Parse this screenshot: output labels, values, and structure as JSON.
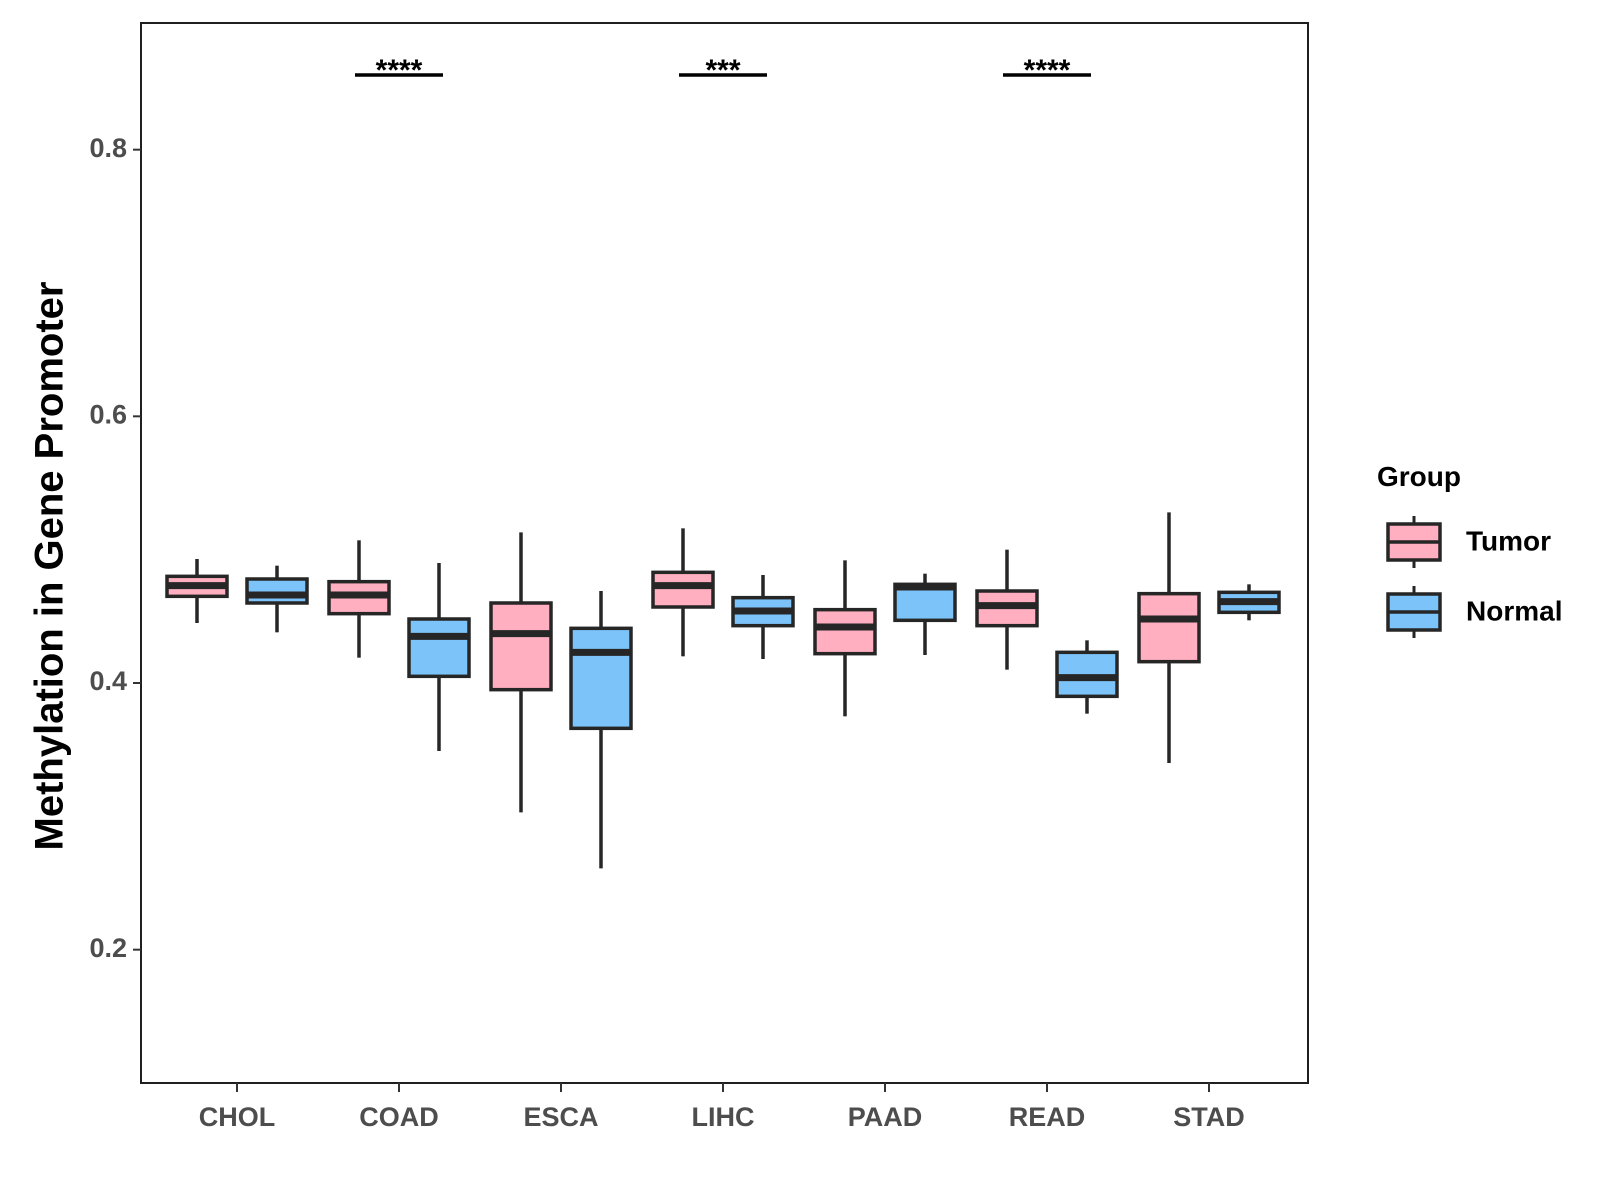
{
  "chart_data": {
    "type": "boxplot",
    "title": "",
    "xlabel": "",
    "ylabel": "Methylation in Gene Promoter",
    "ylim": [
      0.1,
      0.895
    ],
    "yticks": [
      0.2,
      0.4,
      0.6,
      0.8
    ],
    "ytick_labels": [
      "0.2",
      "0.4",
      "0.6",
      "0.8"
    ],
    "categories": [
      "CHOL",
      "COAD",
      "ESCA",
      "LIHC",
      "PAAD",
      "READ",
      "STAD"
    ],
    "legend": {
      "title": "Group",
      "position": "right",
      "entries": [
        {
          "name": "Tumor",
          "color": "#ffafc0"
        },
        {
          "name": "Normal",
          "color": "#7cc3f9"
        }
      ]
    },
    "series": [
      {
        "name": "Tumor",
        "color": "#ffafc0",
        "boxes": [
          {
            "category": "CHOL",
            "min": 0.445,
            "q1": 0.465,
            "median": 0.473,
            "q3": 0.48,
            "max": 0.493
          },
          {
            "category": "COAD",
            "min": 0.419,
            "q1": 0.452,
            "median": 0.466,
            "q3": 0.476,
            "max": 0.507
          },
          {
            "category": "ESCA",
            "min": 0.303,
            "q1": 0.395,
            "median": 0.437,
            "q3": 0.46,
            "max": 0.513
          },
          {
            "category": "LIHC",
            "min": 0.42,
            "q1": 0.457,
            "median": 0.473,
            "q3": 0.483,
            "max": 0.516
          },
          {
            "category": "PAAD",
            "min": 0.375,
            "q1": 0.422,
            "median": 0.442,
            "q3": 0.455,
            "max": 0.492
          },
          {
            "category": "READ",
            "min": 0.41,
            "q1": 0.443,
            "median": 0.458,
            "q3": 0.469,
            "max": 0.5
          },
          {
            "category": "STAD",
            "min": 0.34,
            "q1": 0.416,
            "median": 0.448,
            "q3": 0.467,
            "max": 0.528
          }
        ]
      },
      {
        "name": "Normal",
        "color": "#7cc3f9",
        "boxes": [
          {
            "category": "CHOL",
            "min": 0.438,
            "q1": 0.46,
            "median": 0.466,
            "q3": 0.478,
            "max": 0.488
          },
          {
            "category": "COAD",
            "min": 0.349,
            "q1": 0.405,
            "median": 0.435,
            "q3": 0.448,
            "max": 0.49
          },
          {
            "category": "ESCA",
            "min": 0.261,
            "q1": 0.366,
            "median": 0.423,
            "q3": 0.441,
            "max": 0.469
          },
          {
            "category": "LIHC",
            "min": 0.418,
            "q1": 0.443,
            "median": 0.454,
            "q3": 0.464,
            "max": 0.481
          },
          {
            "category": "PAAD",
            "min": 0.421,
            "q1": 0.447,
            "median": 0.472,
            "q3": 0.474,
            "max": 0.482
          },
          {
            "category": "READ",
            "min": 0.377,
            "q1": 0.39,
            "median": 0.404,
            "q3": 0.423,
            "max": 0.432
          },
          {
            "category": "STAD",
            "min": 0.447,
            "q1": 0.453,
            "median": 0.461,
            "q3": 0.468,
            "max": 0.474
          }
        ]
      }
    ],
    "annotations": [
      {
        "category": "COAD",
        "label": "****"
      },
      {
        "category": "LIHC",
        "label": "***"
      },
      {
        "category": "READ",
        "label": "****"
      }
    ]
  }
}
